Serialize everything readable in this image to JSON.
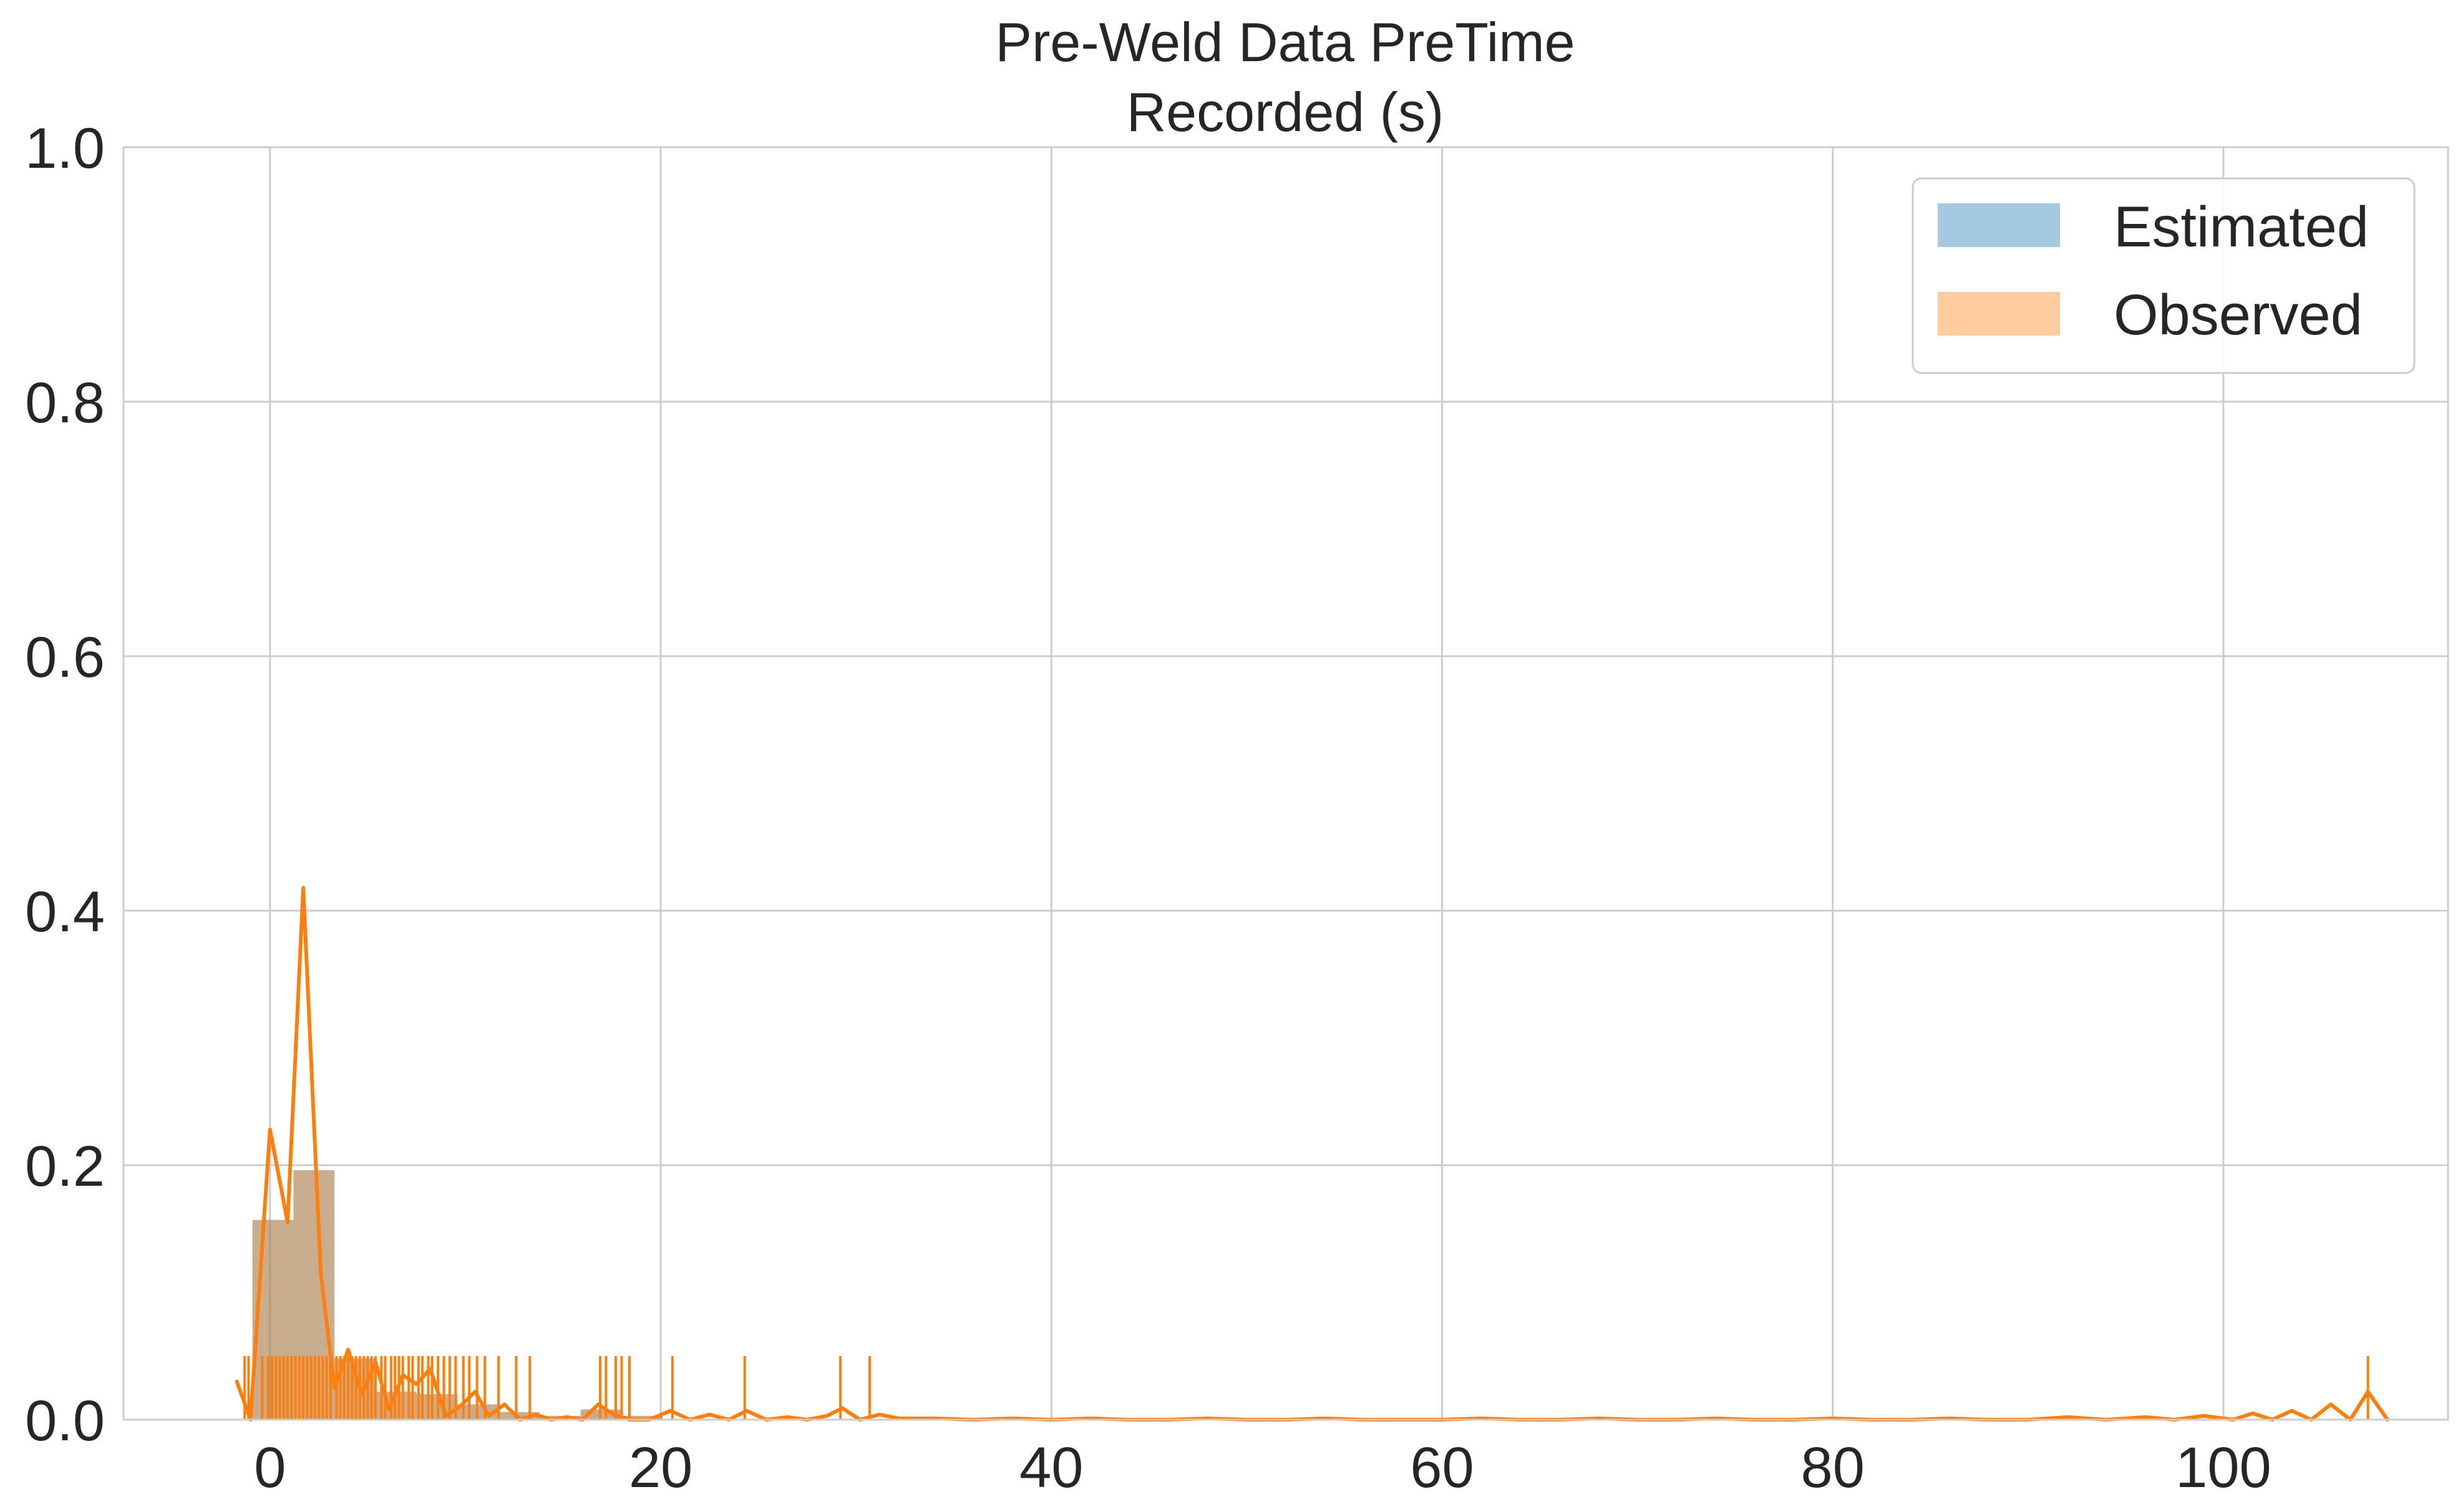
{
  "chart_data": {
    "type": "bar",
    "title": "Pre-Weld Data PreTime\nRecorded (s)",
    "xlabel": "",
    "ylabel": "",
    "xlim": [
      -7.5,
      111.5
    ],
    "ylim": [
      0,
      1.0
    ],
    "xticks": [
      "0",
      "20",
      "40",
      "60",
      "80",
      "100"
    ],
    "yticks": [
      "0.0",
      "0.2",
      "0.4",
      "0.6",
      "0.8",
      "1.0"
    ],
    "grid": true,
    "legend_position": "top-right",
    "legend": [
      "Estimated",
      "Observed"
    ],
    "colors": {
      "estimated": "#1f77b4",
      "observed": "#ff7f0e",
      "grid": "#cccccc",
      "text": "#262626"
    },
    "series": [
      {
        "name": "Estimated",
        "kind": "histogram",
        "bins": [
          {
            "x0": -0.9,
            "x1": 1.2,
            "value": 0.157
          },
          {
            "x0": 1.2,
            "x1": 3.3,
            "value": 0.196
          },
          {
            "x0": 3.3,
            "x1": 5.4,
            "value": 0.048
          },
          {
            "x0": 5.4,
            "x1": 7.5,
            "value": 0.022
          },
          {
            "x0": 7.5,
            "x1": 9.6,
            "value": 0.02
          },
          {
            "x0": 9.6,
            "x1": 11.7,
            "value": 0.012
          },
          {
            "x0": 11.7,
            "x1": 13.8,
            "value": 0.006
          },
          {
            "x0": 13.8,
            "x1": 15.9,
            "value": 0.003
          },
          {
            "x0": 15.9,
            "x1": 18.0,
            "value": 0.008
          },
          {
            "x0": 18.0,
            "x1": 20.1,
            "value": 0.003
          }
        ]
      },
      {
        "name": "Observed",
        "kind": "line",
        "x": [
          -1.7,
          -1.0,
          0.0,
          0.9,
          1.7,
          2.6,
          3.3,
          4.0,
          4.7,
          5.4,
          6.1,
          6.8,
          7.5,
          8.2,
          9.0,
          9.7,
          10.5,
          11.2,
          12.0,
          12.8,
          13.6,
          14.4,
          15.2,
          16.0,
          16.8,
          17.6,
          18.4,
          19.4,
          20.5,
          21.5,
          22.5,
          23.5,
          24.4,
          25.4,
          26.5,
          27.5,
          28.5,
          29.3,
          30.2,
          31.2,
          32.2,
          34.0,
          36.0,
          38.0,
          40.0,
          42.0,
          44.0,
          46.0,
          48.0,
          50.0,
          52.0,
          54.0,
          56.0,
          58.0,
          60.0,
          62.0,
          64.0,
          66.0,
          68.0,
          70.0,
          72.0,
          74.0,
          76.0,
          78.0,
          80.0,
          82.0,
          84.0,
          86.0,
          88.0,
          90.0,
          92.0,
          94.0,
          96.0,
          97.5,
          99.0,
          100.5,
          101.5,
          102.5,
          103.5,
          104.5,
          105.5,
          106.5,
          107.4,
          108.4
        ],
        "y": [
          0.03,
          0.0,
          0.228,
          0.155,
          0.418,
          0.115,
          0.025,
          0.055,
          0.02,
          0.045,
          0.008,
          0.035,
          0.028,
          0.04,
          0.003,
          0.01,
          0.022,
          0.003,
          0.012,
          0.0,
          0.004,
          0.0,
          0.002,
          0.0,
          0.012,
          0.004,
          0.0,
          0.0,
          0.007,
          0.0,
          0.004,
          0.0,
          0.007,
          0.0,
          0.002,
          0.0,
          0.003,
          0.009,
          0.0,
          0.004,
          0.001,
          0.001,
          0.0,
          0.001,
          0.0,
          0.001,
          0.0,
          0.0,
          0.001,
          0.0,
          0.0,
          0.001,
          0.0,
          0.0,
          0.0,
          0.001,
          0.0,
          0.0,
          0.001,
          0.0,
          0.0,
          0.001,
          0.0,
          0.0,
          0.001,
          0.0,
          0.0,
          0.001,
          0.0,
          0.0,
          0.002,
          0.0,
          0.002,
          0.0,
          0.003,
          0.0,
          0.005,
          0.0,
          0.007,
          0.0,
          0.012,
          0.0,
          0.022,
          0.0
        ]
      }
    ],
    "rug": {
      "series": "Observed",
      "height": 0.05,
      "x": [
        -1.3,
        -1.1,
        -0.4,
        -0.1,
        0.1,
        0.3,
        0.5,
        0.7,
        0.9,
        1.1,
        1.3,
        1.5,
        1.7,
        1.9,
        2.1,
        2.3,
        2.5,
        2.7,
        2.9,
        3.1,
        3.4,
        3.6,
        3.8,
        4.0,
        4.2,
        4.4,
        4.6,
        4.8,
        5.0,
        5.2,
        5.4,
        5.7,
        5.9,
        6.2,
        6.4,
        6.6,
        6.8,
        7.1,
        7.3,
        7.6,
        7.8,
        8.1,
        8.3,
        8.6,
        8.9,
        9.2,
        9.5,
        9.9,
        10.2,
        10.6,
        11.0,
        11.7,
        12.6,
        13.3,
        16.9,
        17.2,
        17.7,
        18.0,
        18.4,
        20.6,
        24.3,
        29.2,
        30.7,
        107.4
      ]
    }
  }
}
